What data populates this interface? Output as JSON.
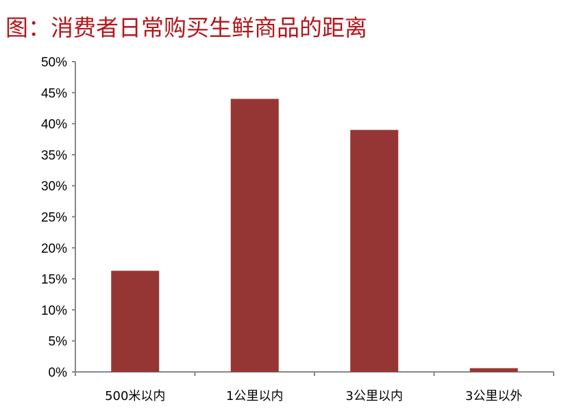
{
  "title": "图：消费者日常购买生鲜商品的距离",
  "chart_data": {
    "type": "bar",
    "title": "图：消费者日常购买生鲜商品的距离",
    "categories": [
      "500米以内",
      "1公里以内",
      "3公里以内",
      "3公里以外"
    ],
    "values": [
      16.3,
      44.0,
      39.0,
      0.6
    ],
    "unit": "%",
    "ylim": [
      0,
      50
    ],
    "yticks": [
      0,
      5,
      10,
      15,
      20,
      25,
      30,
      35,
      40,
      45,
      50
    ],
    "ytick_labels": [
      "0%",
      "5%",
      "10%",
      "15%",
      "20%",
      "25%",
      "30%",
      "35%",
      "40%",
      "45%",
      "50%"
    ],
    "xlabel": "",
    "ylabel": "",
    "grid": false,
    "bar_color": "#963634",
    "title_color": "#b5161b"
  }
}
